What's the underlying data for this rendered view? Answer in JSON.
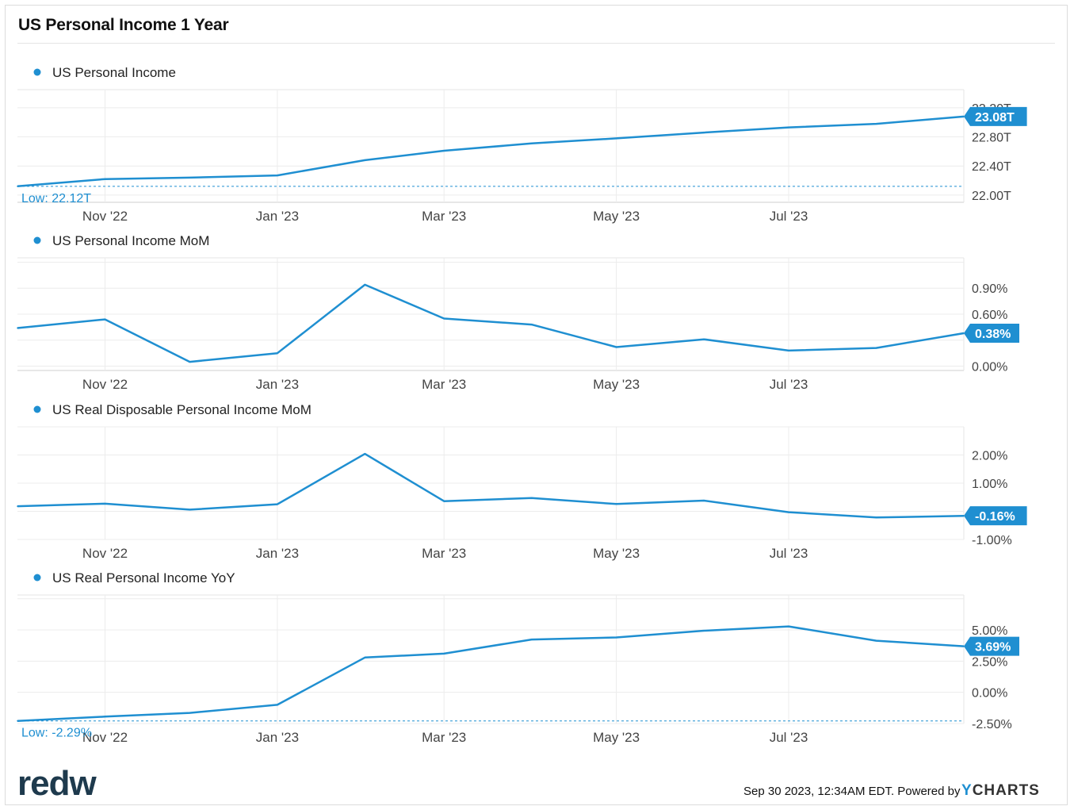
{
  "title": "US Personal Income 1 Year",
  "footer": {
    "timestamp": "Sep 30 2023, 12:34AM EDT. Powered by",
    "brand_y": "Y",
    "brand_rest": "CHARTS"
  },
  "logo_text": "redw",
  "colors": {
    "series": "#1f8fd1",
    "grid": "#ececec",
    "axis_text": "#444444",
    "label_bg": "#1f8fd1"
  },
  "chart_data": [
    {
      "type": "line",
      "legend": "US Personal Income",
      "x": [
        "2022-09-30",
        "2022-10-31",
        "2022-11-30",
        "2022-12-31",
        "2023-01-31",
        "2023-02-28",
        "2023-03-31",
        "2023-04-30",
        "2023-05-31",
        "2023-06-30",
        "2023-07-31",
        "2023-08-31"
      ],
      "y": [
        22.12,
        22.22,
        22.24,
        22.27,
        22.48,
        22.61,
        22.71,
        22.78,
        22.86,
        22.93,
        22.98,
        23.08
      ],
      "unit": "T",
      "yticks": [
        "22.00T",
        "22.40T",
        "22.80T",
        "23.20T"
      ],
      "ytick_values": [
        22.0,
        22.4,
        22.8,
        23.2
      ],
      "ylim": [
        21.9,
        23.45
      ],
      "xticks": [
        "Nov '22",
        "Jan '23",
        "Mar '23",
        "May '23",
        "Jul '23"
      ],
      "last_label": "23.08T",
      "low_label": "Low: 22.12T",
      "low_value": 22.12
    },
    {
      "type": "line",
      "legend": "US Personal Income MoM",
      "x": [
        "2022-09-30",
        "2022-10-31",
        "2022-11-30",
        "2022-12-31",
        "2023-01-31",
        "2023-02-28",
        "2023-03-31",
        "2023-04-30",
        "2023-05-31",
        "2023-06-30",
        "2023-07-31",
        "2023-08-31"
      ],
      "y": [
        0.44,
        0.54,
        0.05,
        0.15,
        0.94,
        0.55,
        0.48,
        0.22,
        0.31,
        0.18,
        0.21,
        0.38
      ],
      "unit": "%",
      "yticks": [
        "0.00%",
        "0.60%",
        "0.90%"
      ],
      "ytick_values": [
        0.0,
        0.6,
        0.9
      ],
      "grid_values": [
        0.0,
        0.3,
        0.6,
        0.9,
        1.2
      ],
      "ylim": [
        -0.05,
        1.25
      ],
      "xticks": [
        "Nov '22",
        "Jan '23",
        "Mar '23",
        "May '23",
        "Jul '23"
      ],
      "last_label": "0.38%"
    },
    {
      "type": "line",
      "legend": "US Real Disposable Personal Income MoM",
      "x": [
        "2022-09-30",
        "2022-10-31",
        "2022-11-30",
        "2022-12-31",
        "2023-01-31",
        "2023-02-28",
        "2023-03-31",
        "2023-04-30",
        "2023-05-31",
        "2023-06-30",
        "2023-07-31",
        "2023-08-31"
      ],
      "y": [
        0.18,
        0.27,
        0.06,
        0.25,
        2.04,
        0.36,
        0.47,
        0.26,
        0.38,
        -0.03,
        -0.22,
        -0.16
      ],
      "unit": "%",
      "yticks": [
        "-1.00%",
        "0.00%",
        "1.00%",
        "2.00%"
      ],
      "ytick_values": [
        -1.0,
        0.0,
        1.0,
        2.0
      ],
      "grid_values": [
        -1.0,
        0.0,
        1.0,
        2.0,
        3.0
      ],
      "ylim": [
        -1.0,
        3.0
      ],
      "xticks": [
        "Nov '22",
        "Jan '23",
        "Mar '23",
        "May '23",
        "Jul '23"
      ],
      "last_label": "-0.16%"
    },
    {
      "type": "line",
      "legend": "US Real Personal Income YoY",
      "x": [
        "2022-09-30",
        "2022-10-31",
        "2022-11-30",
        "2022-12-31",
        "2023-01-31",
        "2023-02-28",
        "2023-03-31",
        "2023-04-30",
        "2023-05-31",
        "2023-06-30",
        "2023-07-31",
        "2023-08-31"
      ],
      "y": [
        -2.29,
        -1.95,
        -1.65,
        -1.0,
        2.79,
        3.1,
        4.23,
        4.4,
        4.94,
        5.28,
        4.14,
        3.69
      ],
      "unit": "%",
      "yticks": [
        "-2.50%",
        "0.00%",
        "2.50%",
        "5.00%"
      ],
      "ytick_values": [
        -2.5,
        0.0,
        2.5,
        5.0
      ],
      "grid_values": [
        -2.5,
        0.0,
        2.5,
        5.0,
        7.5
      ],
      "ylim": [
        -2.5,
        7.8
      ],
      "xticks": [
        "Nov '22",
        "Jan '23",
        "Mar '23",
        "May '23",
        "Jul '23"
      ],
      "last_label": "3.69%",
      "low_label": "Low: -2.29%",
      "low_value": -2.29
    }
  ]
}
